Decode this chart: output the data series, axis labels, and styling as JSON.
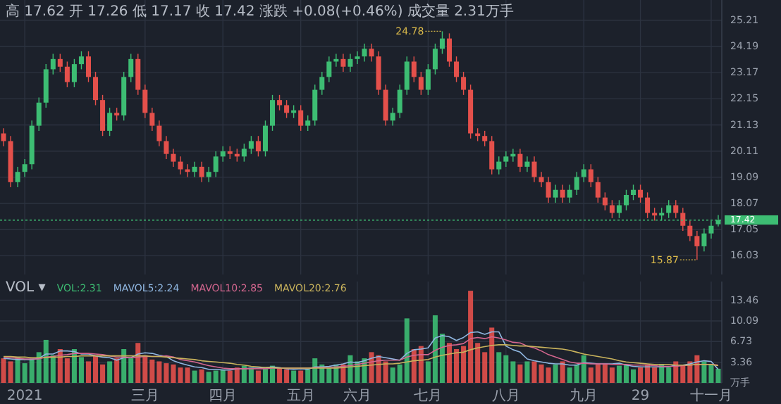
{
  "chart_data": [
    {
      "type": "candlestick",
      "title": "高 17.62 开 17.26 低 17.17 收 17.42 涨跌 +0.08(+0.46%) 成交量 2.31万手",
      "categories": [
        null,
        null,
        null,
        null,
        null,
        null,
        null,
        null,
        null,
        null,
        null,
        null,
        null,
        null,
        null,
        null,
        null,
        null,
        null,
        null,
        null,
        null,
        null,
        null,
        null,
        null,
        null,
        null,
        null,
        null,
        null,
        null,
        null,
        null,
        null,
        null,
        null,
        null,
        null,
        null,
        null,
        null,
        null,
        null,
        null,
        null,
        null,
        null,
        null,
        null,
        null,
        null,
        null,
        null,
        null,
        null,
        null,
        null,
        null,
        null,
        null,
        null,
        null,
        null,
        null,
        null,
        null,
        null,
        null,
        null,
        null,
        null,
        null,
        null,
        null,
        null,
        null,
        null,
        null,
        null,
        null,
        null,
        null,
        null,
        null,
        null,
        null,
        null,
        null,
        null,
        null,
        null,
        null,
        null,
        null,
        null,
        null,
        null,
        null,
        null,
        null,
        null
      ],
      "ohlc": [
        [
          20.8,
          21.0,
          20.3,
          20.5
        ],
        [
          20.5,
          20.7,
          18.7,
          18.9
        ],
        [
          18.9,
          19.5,
          18.7,
          19.3
        ],
        [
          19.3,
          19.8,
          19.1,
          19.6
        ],
        [
          19.6,
          21.3,
          19.4,
          21.1
        ],
        [
          21.1,
          22.2,
          20.9,
          22.0
        ],
        [
          22.0,
          23.5,
          21.8,
          23.3
        ],
        [
          23.3,
          23.9,
          23.1,
          23.7
        ],
        [
          23.7,
          23.9,
          23.2,
          23.4
        ],
        [
          23.4,
          23.6,
          22.6,
          22.8
        ],
        [
          22.8,
          23.7,
          22.6,
          23.5
        ],
        [
          23.5,
          24.0,
          23.3,
          23.8
        ],
        [
          23.8,
          24.0,
          22.8,
          23.0
        ],
        [
          23.0,
          23.2,
          21.9,
          22.1
        ],
        [
          22.1,
          22.3,
          20.7,
          20.9
        ],
        [
          20.9,
          21.8,
          20.7,
          21.6
        ],
        [
          21.6,
          21.8,
          21.3,
          21.5
        ],
        [
          21.5,
          23.2,
          21.3,
          23.0
        ],
        [
          23.0,
          23.9,
          22.8,
          23.7
        ],
        [
          23.7,
          23.9,
          22.3,
          22.5
        ],
        [
          22.5,
          22.7,
          21.4,
          21.6
        ],
        [
          21.6,
          21.8,
          20.9,
          21.1
        ],
        [
          21.1,
          21.3,
          20.3,
          20.5
        ],
        [
          20.5,
          20.7,
          19.8,
          20.0
        ],
        [
          20.0,
          20.2,
          19.5,
          19.7
        ],
        [
          19.7,
          19.9,
          19.2,
          19.4
        ],
        [
          19.4,
          19.6,
          19.1,
          19.3
        ],
        [
          19.3,
          19.7,
          19.1,
          19.5
        ],
        [
          19.5,
          19.7,
          18.9,
          19.1
        ],
        [
          19.1,
          19.5,
          18.9,
          19.3
        ],
        [
          19.3,
          20.1,
          19.1,
          19.9
        ],
        [
          19.9,
          20.3,
          19.7,
          20.1
        ],
        [
          20.1,
          20.3,
          19.8,
          20.0
        ],
        [
          20.0,
          20.2,
          19.7,
          19.9
        ],
        [
          19.9,
          20.4,
          19.7,
          20.2
        ],
        [
          20.2,
          20.7,
          20.0,
          20.5
        ],
        [
          20.5,
          20.7,
          19.9,
          20.1
        ],
        [
          20.1,
          21.3,
          19.9,
          21.1
        ],
        [
          21.1,
          22.3,
          20.9,
          22.1
        ],
        [
          22.1,
          22.3,
          21.7,
          21.9
        ],
        [
          21.9,
          22.1,
          21.4,
          21.6
        ],
        [
          21.6,
          21.9,
          21.4,
          21.7
        ],
        [
          21.7,
          21.9,
          20.9,
          21.1
        ],
        [
          21.1,
          21.5,
          20.9,
          21.3
        ],
        [
          21.3,
          22.7,
          21.1,
          22.5
        ],
        [
          22.5,
          23.2,
          22.3,
          23.0
        ],
        [
          23.0,
          23.8,
          22.8,
          23.6
        ],
        [
          23.6,
          23.9,
          23.4,
          23.7
        ],
        [
          23.7,
          23.9,
          23.2,
          23.4
        ],
        [
          23.4,
          23.9,
          23.2,
          23.7
        ],
        [
          23.7,
          24.0,
          23.5,
          23.8
        ],
        [
          23.8,
          24.3,
          23.6,
          24.1
        ],
        [
          24.1,
          24.3,
          23.6,
          23.8
        ],
        [
          23.8,
          24.0,
          22.3,
          22.5
        ],
        [
          22.5,
          22.7,
          21.1,
          21.3
        ],
        [
          21.3,
          21.8,
          21.1,
          21.6
        ],
        [
          21.6,
          22.7,
          21.4,
          22.5
        ],
        [
          22.5,
          23.8,
          22.3,
          23.6
        ],
        [
          23.6,
          23.8,
          22.8,
          23.0
        ],
        [
          23.0,
          23.2,
          22.3,
          22.5
        ],
        [
          22.5,
          23.5,
          22.3,
          23.3
        ],
        [
          23.3,
          24.3,
          23.1,
          24.1
        ],
        [
          24.1,
          24.78,
          23.9,
          24.5
        ],
        [
          24.5,
          24.7,
          23.4,
          23.6
        ],
        [
          23.6,
          23.8,
          22.8,
          23.0
        ],
        [
          23.0,
          23.2,
          22.3,
          22.5
        ],
        [
          22.5,
          22.7,
          20.6,
          20.8
        ],
        [
          20.8,
          21.0,
          20.5,
          20.7
        ],
        [
          20.7,
          20.9,
          20.3,
          20.5
        ],
        [
          20.5,
          20.7,
          19.2,
          19.4
        ],
        [
          19.4,
          19.9,
          19.2,
          19.7
        ],
        [
          19.7,
          20.1,
          19.5,
          19.9
        ],
        [
          19.9,
          20.2,
          19.7,
          20.0
        ],
        [
          20.0,
          20.2,
          19.3,
          19.5
        ],
        [
          19.5,
          19.9,
          19.3,
          19.7
        ],
        [
          19.7,
          19.9,
          18.9,
          19.1
        ],
        [
          19.1,
          19.3,
          18.7,
          18.9
        ],
        [
          18.9,
          19.1,
          18.1,
          18.3
        ],
        [
          18.3,
          18.8,
          18.1,
          18.6
        ],
        [
          18.6,
          18.8,
          18.1,
          18.3
        ],
        [
          18.3,
          18.8,
          18.1,
          18.6
        ],
        [
          18.6,
          19.3,
          18.4,
          19.1
        ],
        [
          19.1,
          19.6,
          18.9,
          19.4
        ],
        [
          19.4,
          19.6,
          18.7,
          18.9
        ],
        [
          18.9,
          19.1,
          18.1,
          18.3
        ],
        [
          18.3,
          18.5,
          17.8,
          18.0
        ],
        [
          18.0,
          18.2,
          17.5,
          17.7
        ],
        [
          17.7,
          18.2,
          17.5,
          18.0
        ],
        [
          18.0,
          18.6,
          17.8,
          18.4
        ],
        [
          18.4,
          18.8,
          18.2,
          18.6
        ],
        [
          18.6,
          18.8,
          18.1,
          18.3
        ],
        [
          18.3,
          18.5,
          17.5,
          17.7
        ],
        [
          17.7,
          17.9,
          17.4,
          17.6
        ],
        [
          17.6,
          17.9,
          17.4,
          17.7
        ],
        [
          17.7,
          18.2,
          17.5,
          18.0
        ],
        [
          18.0,
          18.2,
          17.5,
          17.7
        ],
        [
          17.7,
          17.9,
          17.0,
          17.2
        ],
        [
          17.2,
          17.4,
          16.6,
          16.8
        ],
        [
          16.8,
          17.0,
          15.87,
          16.4
        ],
        [
          16.4,
          17.1,
          16.2,
          16.9
        ],
        [
          16.9,
          17.4,
          16.7,
          17.2
        ],
        [
          17.26,
          17.62,
          17.17,
          17.42
        ]
      ],
      "colors": [
        "#e4504b",
        "#e4504b",
        "#3dbd73",
        "#3dbd73",
        "#3dbd73",
        "#3dbd73",
        "#3dbd73",
        "#3dbd73",
        "#e4504b",
        "#e4504b",
        "#3dbd73",
        "#3dbd73",
        "#e4504b",
        "#e4504b",
        "#e4504b",
        "#3dbd73",
        "#e4504b",
        "#3dbd73",
        "#3dbd73",
        "#e4504b",
        "#e4504b",
        "#e4504b",
        "#e4504b",
        "#e4504b",
        "#e4504b",
        "#e4504b",
        "#e4504b",
        "#3dbd73",
        "#e4504b",
        "#3dbd73",
        "#3dbd73",
        "#3dbd73",
        "#e4504b",
        "#e4504b",
        "#3dbd73",
        "#3dbd73",
        "#e4504b",
        "#3dbd73",
        "#3dbd73",
        "#e4504b",
        "#e4504b",
        "#3dbd73",
        "#e4504b",
        "#3dbd73",
        "#3dbd73",
        "#3dbd73",
        "#3dbd73",
        "#3dbd73",
        "#e4504b",
        "#3dbd73",
        "#3dbd73",
        "#3dbd73",
        "#e4504b",
        "#e4504b",
        "#e4504b",
        "#3dbd73",
        "#3dbd73",
        "#3dbd73",
        "#e4504b",
        "#e4504b",
        "#3dbd73",
        "#3dbd73",
        "#3dbd73",
        "#e4504b",
        "#e4504b",
        "#e4504b",
        "#e4504b",
        "#e4504b",
        "#e4504b",
        "#e4504b",
        "#3dbd73",
        "#3dbd73",
        "#3dbd73",
        "#e4504b",
        "#3dbd73",
        "#e4504b",
        "#e4504b",
        "#e4504b",
        "#3dbd73",
        "#e4504b",
        "#3dbd73",
        "#3dbd73",
        "#3dbd73",
        "#e4504b",
        "#e4504b",
        "#e4504b",
        "#e4504b",
        "#3dbd73",
        "#3dbd73",
        "#3dbd73",
        "#e4504b",
        "#e4504b",
        "#e4504b",
        "#3dbd73",
        "#3dbd73",
        "#e4504b",
        "#e4504b",
        "#e4504b",
        "#e4504b",
        "#3dbd73",
        "#3dbd73",
        "#3dbd73"
      ],
      "ylim": [
        15.3,
        26.0
      ],
      "yticks": [
        25.21,
        24.19,
        23.17,
        22.15,
        21.13,
        20.11,
        19.09,
        18.07,
        17.05,
        16.03
      ],
      "tick_labels": "y",
      "grid": true,
      "ref_lines": [
        {
          "axis": "y",
          "value": 17.42,
          "label": "17.42",
          "color": "#3dbd73",
          "line_style": "dotted"
        }
      ],
      "annotations": [
        "24.78",
        "15.87"
      ]
    },
    {
      "type": "bar",
      "title": "VOL ▾",
      "categories": [
        null,
        null,
        null,
        "2021",
        null,
        null,
        null,
        null,
        null,
        null,
        null,
        null,
        null,
        null,
        null,
        null,
        null,
        null,
        null,
        null,
        "三月",
        null,
        null,
        null,
        null,
        null,
        null,
        null,
        null,
        null,
        null,
        "四月",
        null,
        null,
        null,
        null,
        null,
        null,
        null,
        null,
        null,
        null,
        "五月",
        null,
        null,
        null,
        null,
        null,
        null,
        null,
        "六月",
        null,
        null,
        null,
        null,
        null,
        null,
        null,
        null,
        null,
        "七月",
        null,
        null,
        null,
        null,
        null,
        null,
        null,
        null,
        null,
        null,
        "八月",
        null,
        null,
        null,
        null,
        null,
        null,
        null,
        null,
        null,
        null,
        "九月",
        null,
        null,
        null,
        null,
        null,
        null,
        null,
        "29",
        null,
        null,
        null,
        null,
        null,
        null,
        null,
        null,
        null,
        "十一月",
        null
      ],
      "series": [
        {
          "name": "VOL:2.31",
          "type": "bar",
          "values": [
            4.0,
            3.5,
            4.2,
            3.2,
            4.0,
            5.0,
            7.0,
            4.5,
            5.5,
            4.0,
            5.5,
            4.2,
            3.5,
            4.5,
            3.0,
            3.5,
            4.0,
            5.5,
            4.0,
            6.5,
            4.5,
            3.8,
            3.5,
            3.2,
            3.0,
            2.5,
            2.5,
            2.0,
            2.2,
            1.8,
            2.0,
            2.2,
            2.0,
            2.5,
            2.8,
            2.5,
            2.0,
            2.5,
            2.8,
            2.5,
            2.2,
            2.0,
            2.0,
            2.2,
            4.0,
            3.0,
            2.5,
            3.0,
            3.0,
            4.5,
            3.5,
            4.0,
            5.0,
            4.5,
            3.5,
            2.5,
            3.0,
            10.5,
            5.5,
            6.0,
            3.5,
            11.0,
            8.0,
            6.5,
            5.5,
            6.0,
            15.0,
            6.5,
            5.0,
            9.0,
            5.0,
            4.5,
            3.5,
            3.0,
            3.5,
            3.5,
            3.0,
            2.5,
            3.0,
            3.5,
            2.5,
            3.0,
            4.5,
            2.5,
            3.0,
            3.0,
            2.5,
            2.8,
            3.0,
            2.2,
            2.5,
            3.0,
            2.5,
            3.0,
            2.5,
            3.5,
            2.8,
            3.5,
            4.5,
            3.5,
            3.0,
            2.3
          ],
          "colors": [
            "#e4504b",
            "#e4504b",
            "#3dbd73",
            "#3dbd73",
            "#3dbd73",
            "#3dbd73",
            "#3dbd73",
            "#3dbd73",
            "#e4504b",
            "#e4504b",
            "#3dbd73",
            "#3dbd73",
            "#e4504b",
            "#e4504b",
            "#e4504b",
            "#3dbd73",
            "#e4504b",
            "#3dbd73",
            "#3dbd73",
            "#e4504b",
            "#e4504b",
            "#e4504b",
            "#e4504b",
            "#e4504b",
            "#e4504b",
            "#e4504b",
            "#e4504b",
            "#3dbd73",
            "#e4504b",
            "#3dbd73",
            "#3dbd73",
            "#3dbd73",
            "#e4504b",
            "#e4504b",
            "#3dbd73",
            "#3dbd73",
            "#e4504b",
            "#3dbd73",
            "#3dbd73",
            "#e4504b",
            "#e4504b",
            "#3dbd73",
            "#e4504b",
            "#3dbd73",
            "#3dbd73",
            "#3dbd73",
            "#3dbd73",
            "#3dbd73",
            "#e4504b",
            "#3dbd73",
            "#3dbd73",
            "#3dbd73",
            "#e4504b",
            "#e4504b",
            "#e4504b",
            "#3dbd73",
            "#3dbd73",
            "#3dbd73",
            "#e4504b",
            "#e4504b",
            "#3dbd73",
            "#3dbd73",
            "#3dbd73",
            "#e4504b",
            "#e4504b",
            "#e4504b",
            "#e4504b",
            "#e4504b",
            "#e4504b",
            "#e4504b",
            "#3dbd73",
            "#3dbd73",
            "#3dbd73",
            "#e4504b",
            "#3dbd73",
            "#e4504b",
            "#e4504b",
            "#e4504b",
            "#3dbd73",
            "#e4504b",
            "#3dbd73",
            "#3dbd73",
            "#3dbd73",
            "#e4504b",
            "#e4504b",
            "#e4504b",
            "#e4504b",
            "#3dbd73",
            "#3dbd73",
            "#3dbd73",
            "#e4504b",
            "#e4504b",
            "#e4504b",
            "#3dbd73",
            "#3dbd73",
            "#e4504b",
            "#e4504b",
            "#e4504b",
            "#e4504b",
            "#3dbd73",
            "#3dbd73",
            "#3dbd73"
          ]
        },
        {
          "name": "MAVOL5:2.24",
          "type": "line",
          "color": "#8fb6e0",
          "values": [
            4.0,
            3.9,
            3.8,
            3.8,
            3.8,
            4.0,
            4.7,
            4.7,
            5.2,
            5.2,
            5.1,
            4.7,
            4.7,
            4.4,
            4.2,
            4.1,
            3.7,
            4.1,
            4.1,
            4.7,
            4.9,
            4.8,
            4.5,
            4.3,
            3.6,
            3.2,
            2.9,
            2.6,
            2.5,
            2.2,
            2.2,
            2.1,
            2.1,
            2.3,
            2.3,
            2.4,
            2.4,
            2.5,
            2.6,
            2.5,
            2.3,
            2.2,
            2.3,
            2.2,
            2.6,
            2.6,
            2.7,
            2.9,
            3.1,
            3.4,
            3.3,
            3.6,
            4.0,
            4.3,
            4.1,
            3.9,
            3.7,
            4.8,
            5.4,
            5.5,
            5.7,
            7.3,
            7.7,
            7.5,
            6.9,
            7.4,
            8.2,
            8.3,
            7.9,
            8.3,
            8.3,
            6.0,
            5.4,
            5.0,
            3.9,
            3.6,
            3.4,
            3.2,
            3.1,
            3.1,
            2.9,
            2.9,
            3.3,
            3.2,
            3.1,
            3.1,
            3.1,
            3.2,
            2.9,
            2.7,
            2.6,
            2.6,
            2.6,
            2.6,
            2.6,
            2.9,
            2.9,
            3.1,
            3.4,
            3.6,
            3.5,
            2.2
          ]
        },
        {
          "name": "MAVOL10:2.85",
          "type": "line",
          "color": "#d4668f",
          "values": [
            4.2,
            4.1,
            4.0,
            3.9,
            3.9,
            3.9,
            4.2,
            4.3,
            4.5,
            4.6,
            4.8,
            4.8,
            4.8,
            4.7,
            4.6,
            4.4,
            4.2,
            4.2,
            4.1,
            4.2,
            4.3,
            4.3,
            4.3,
            4.4,
            4.2,
            3.8,
            3.6,
            3.4,
            3.1,
            2.8,
            2.6,
            2.4,
            2.3,
            2.3,
            2.3,
            2.3,
            2.3,
            2.3,
            2.4,
            2.4,
            2.4,
            2.4,
            2.4,
            2.4,
            2.5,
            2.5,
            2.5,
            2.6,
            2.7,
            2.8,
            3.0,
            3.2,
            3.4,
            3.6,
            3.7,
            3.7,
            3.7,
            4.2,
            4.5,
            4.6,
            4.6,
            5.3,
            5.8,
            6.1,
            6.2,
            6.4,
            7.2,
            7.4,
            7.2,
            7.5,
            7.3,
            7.0,
            6.6,
            6.5,
            6.0,
            5.7,
            5.2,
            4.6,
            4.2,
            3.8,
            3.4,
            3.2,
            3.2,
            3.1,
            3.1,
            3.1,
            3.0,
            3.0,
            3.0,
            2.9,
            2.9,
            2.9,
            2.8,
            2.7,
            2.7,
            2.7,
            2.8,
            2.9,
            3.0,
            3.0,
            3.0,
            2.9
          ]
        },
        {
          "name": "MAVOL20:2.76",
          "type": "line",
          "color": "#c9b35c",
          "values": [
            4.3,
            4.3,
            4.2,
            4.2,
            4.1,
            4.1,
            4.1,
            4.2,
            4.2,
            4.3,
            4.3,
            4.4,
            4.4,
            4.4,
            4.4,
            4.4,
            4.4,
            4.4,
            4.4,
            4.4,
            4.4,
            4.3,
            4.3,
            4.2,
            4.1,
            4.0,
            3.9,
            3.8,
            3.6,
            3.5,
            3.4,
            3.3,
            3.2,
            3.0,
            2.9,
            2.7,
            2.6,
            2.5,
            2.5,
            2.4,
            2.4,
            2.4,
            2.4,
            2.4,
            2.4,
            2.4,
            2.4,
            2.4,
            2.5,
            2.6,
            2.7,
            2.8,
            2.9,
            3.0,
            3.1,
            3.1,
            3.2,
            3.4,
            3.6,
            3.7,
            3.8,
            4.2,
            4.5,
            4.7,
            4.9,
            5.0,
            5.4,
            5.7,
            5.9,
            6.1,
            6.2,
            6.2,
            6.1,
            6.0,
            6.0,
            5.9,
            5.8,
            5.7,
            5.6,
            5.5,
            5.3,
            5.0,
            4.7,
            4.5,
            4.3,
            4.1,
            3.9,
            3.6,
            3.4,
            3.3,
            3.2,
            3.1,
            3.0,
            3.0,
            3.0,
            2.9,
            2.9,
            2.9,
            3.0,
            3.0,
            3.0,
            2.8
          ]
        }
      ],
      "ylim": [
        0,
        16.5
      ],
      "yticks": [
        {
          "value": 0,
          "label": "万手"
        },
        3.36,
        6.73,
        10.09,
        13.46
      ],
      "grid": true,
      "legend": "top left"
    }
  ]
}
